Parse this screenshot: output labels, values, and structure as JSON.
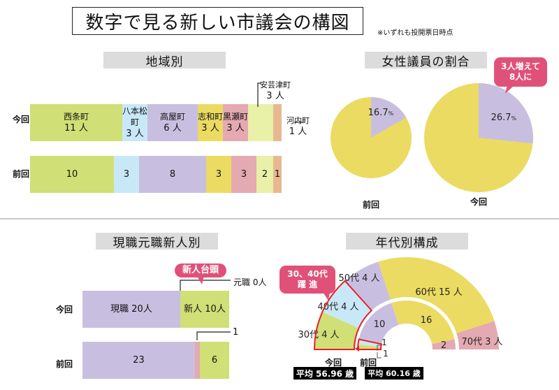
{
  "header": {
    "title": "数字で見る新しい市議会の構図",
    "note": "※いずれも投開票日時点"
  },
  "colors": {
    "green": "#d0df76",
    "lightblue": "#c9e8f7",
    "lavender": "#c8bfe0",
    "yellow": "#ebdb62",
    "pink": "#e4a9b1",
    "paleyellow": "#e9f0a8",
    "peach": "#e8b890",
    "accent": "#e0517a",
    "highlight_stroke": "#e8202a"
  },
  "chart_data": [
    {
      "type": "bar",
      "id": "region",
      "title": "地域別",
      "stacked": true,
      "orientation": "horizontal",
      "categories": [
        "西条町",
        "八本松町",
        "高屋町",
        "志和町",
        "黒瀬町",
        "安芸津町",
        "河内町"
      ],
      "rows": [
        "今回",
        "前回"
      ],
      "series": [
        {
          "name": "今回",
          "values": [
            11,
            3,
            6,
            3,
            3,
            3,
            1
          ],
          "labels": [
            "11 人",
            "3 人",
            "6 人",
            "3 人",
            "3 人",
            "3 人",
            "1 人"
          ]
        },
        {
          "name": "前回",
          "values": [
            10,
            3,
            8,
            3,
            3,
            2,
            1
          ],
          "labels": [
            "10",
            "3",
            "8",
            "3",
            "3",
            "2",
            "1"
          ]
        }
      ]
    },
    {
      "type": "pie",
      "id": "women",
      "title": "女性議員の割合",
      "pies": [
        {
          "name": "前回",
          "values": [
            16.7,
            83.3
          ],
          "label": "16.7",
          "unit": "%"
        },
        {
          "name": "今回",
          "values": [
            26.7,
            73.3
          ],
          "label": "26.7",
          "unit": "%"
        }
      ],
      "annotation": [
        "3人増えて",
        "8人に"
      ]
    },
    {
      "type": "bar",
      "id": "career",
      "title": "現職元職新人別",
      "stacked": true,
      "orientation": "horizontal",
      "categories": [
        "現職",
        "元職",
        "新人"
      ],
      "rows": [
        "今回",
        "前回"
      ],
      "series": [
        {
          "name": "今回",
          "values": [
            20,
            0,
            10
          ],
          "labels": [
            "現職 20人",
            "元職 0人",
            "新人 10人"
          ]
        },
        {
          "name": "前回",
          "values": [
            23,
            1,
            6
          ],
          "labels": [
            "23",
            "1",
            "6"
          ]
        }
      ],
      "annotation": "新人台頭"
    },
    {
      "type": "pie",
      "id": "age",
      "title": "年代別構成",
      "variant": "half-donut",
      "categories": [
        "30代",
        "40代",
        "50代",
        "60代",
        "70代"
      ],
      "series": [
        {
          "name": "今回",
          "values": [
            4,
            4,
            4,
            15,
            3
          ],
          "labels": [
            "30代 4 人",
            "40代 4 人",
            "50代 4 人",
            "60代 15 人",
            "70代 3 人"
          ],
          "average": "平均 56.96 歳"
        },
        {
          "name": "前回",
          "values": [
            1,
            1,
            10,
            16,
            2
          ],
          "labels": [
            "1",
            "1",
            "10",
            "16",
            "2"
          ],
          "average": "平均 60.16 歳"
        }
      ],
      "annotation": [
        "30、40代",
        "躍 進"
      ]
    }
  ]
}
